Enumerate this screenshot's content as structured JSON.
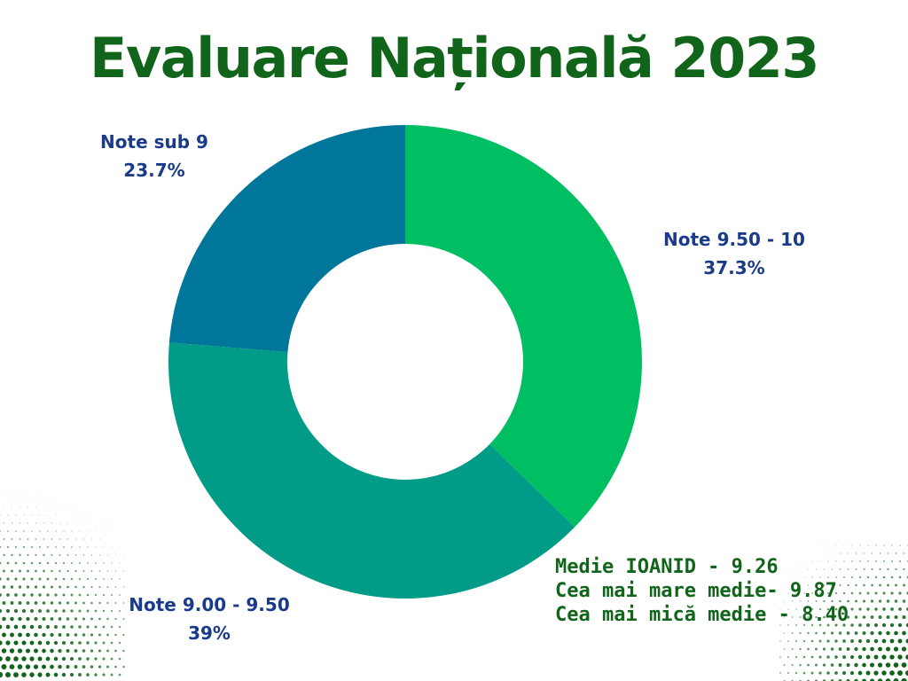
{
  "title": "Evaluare Națională 2023",
  "chart_data": {
    "type": "pie",
    "donut": true,
    "slices": [
      {
        "label": "Note 9.50 - 10",
        "value": 37.3,
        "value_label": "37.3%",
        "color": "#00bf63"
      },
      {
        "label": "Note 9.00 - 9.50",
        "value": 39,
        "value_label": "39%",
        "color": "#009c88"
      },
      {
        "label": "Note sub 9",
        "value": 23.7,
        "value_label": "23.7%",
        "color": "#00769a"
      }
    ]
  },
  "stats": {
    "line1": "Medie IOANID - 9.26",
    "line2": "Cea mai mare medie- 9.87",
    "line3": "Cea mai mică medie  - 8.40"
  },
  "colors": {
    "title": "#11651a",
    "labels": "#1a3a8a",
    "stats": "#11651a",
    "decor_dots": "#11651a"
  }
}
